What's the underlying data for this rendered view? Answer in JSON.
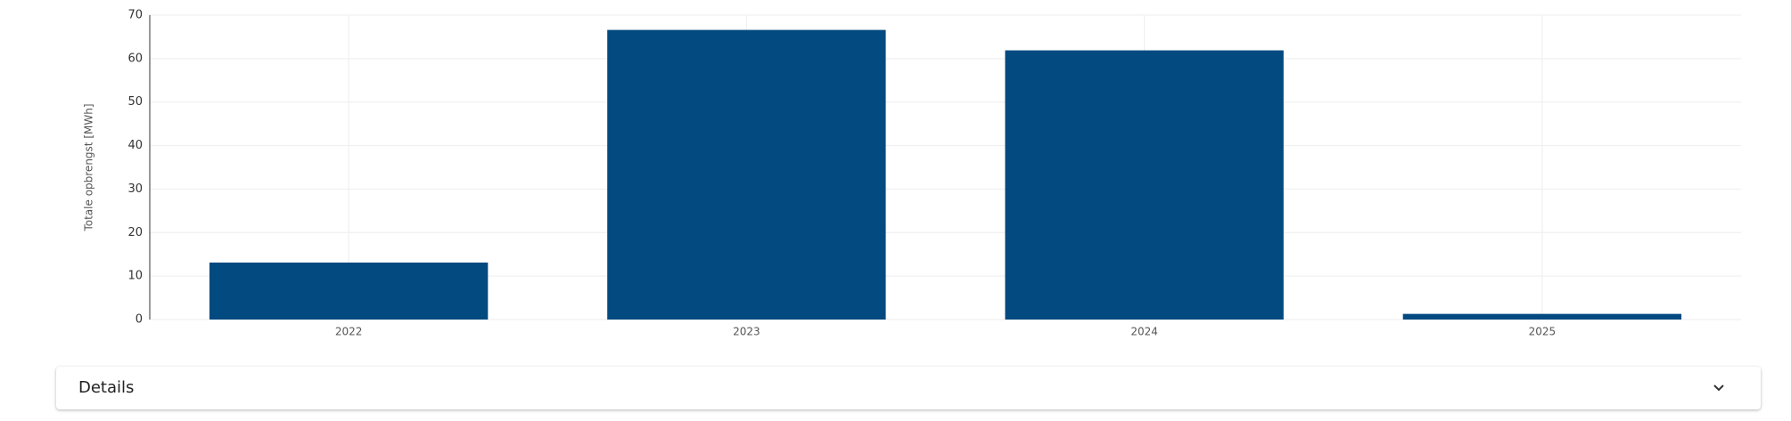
{
  "chart_data": {
    "type": "bar",
    "y_label": "Totale opbrengst [MWh]",
    "categories": [
      "2022",
      "2023",
      "2024",
      "2025"
    ],
    "values": [
      13.1,
      66.6,
      61.9,
      1.3
    ],
    "color": "#034a80",
    "ylim": [
      0,
      70
    ],
    "yticks": [
      0,
      10,
      20,
      30,
      40,
      50,
      60,
      70
    ],
    "grid": true
  },
  "details": {
    "title": "Details"
  }
}
